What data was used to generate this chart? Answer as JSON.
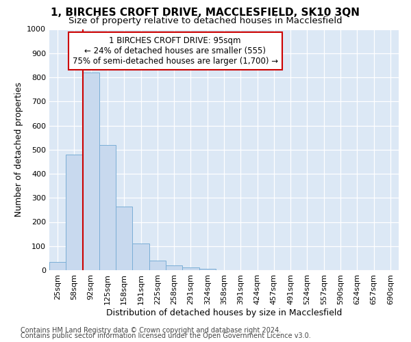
{
  "title": "1, BIRCHES CROFT DRIVE, MACCLESFIELD, SK10 3QN",
  "subtitle": "Size of property relative to detached houses in Macclesfield",
  "xlabel": "Distribution of detached houses by size in Macclesfield",
  "ylabel": "Number of detached properties",
  "footnote1": "Contains HM Land Registry data © Crown copyright and database right 2024.",
  "footnote2": "Contains public sector information licensed under the Open Government Licence v3.0.",
  "categories": [
    "25sqm",
    "58sqm",
    "92sqm",
    "125sqm",
    "158sqm",
    "191sqm",
    "225sqm",
    "258sqm",
    "291sqm",
    "324sqm",
    "358sqm",
    "391sqm",
    "424sqm",
    "457sqm",
    "491sqm",
    "524sqm",
    "557sqm",
    "590sqm",
    "624sqm",
    "657sqm",
    "690sqm"
  ],
  "values": [
    33,
    480,
    820,
    520,
    263,
    110,
    40,
    20,
    10,
    5,
    0,
    0,
    0,
    0,
    0,
    0,
    0,
    0,
    0,
    0,
    0
  ],
  "bar_color": "#c8d9ee",
  "bar_edge_color": "#7aaed6",
  "property_line_x": 1.5,
  "property_line_color": "#cc0000",
  "annotation_text": "1 BIRCHES CROFT DRIVE: 95sqm\n← 24% of detached houses are smaller (555)\n75% of semi-detached houses are larger (1,700) →",
  "annotation_box_facecolor": "#ffffff",
  "annotation_box_edgecolor": "#cc0000",
  "ylim": [
    0,
    1000
  ],
  "background_color": "#dce8f5",
  "grid_color": "#ffffff",
  "fig_background": "#ffffff",
  "title_fontsize": 11,
  "subtitle_fontsize": 9.5,
  "axis_label_fontsize": 9,
  "tick_fontsize": 8,
  "footnote_fontsize": 7
}
